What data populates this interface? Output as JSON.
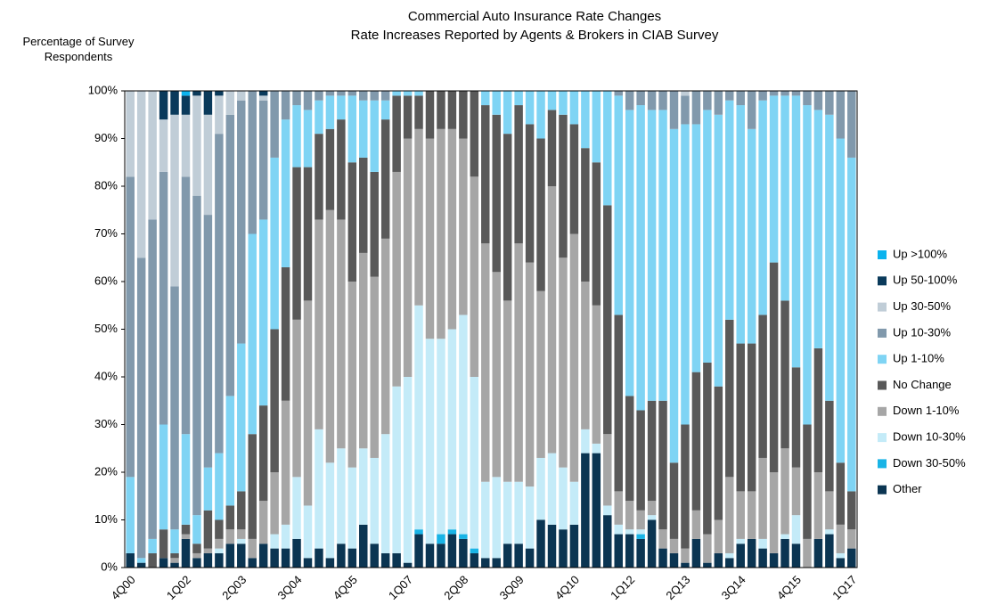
{
  "chart_data": {
    "type": "stacked_bar",
    "title": "Commercial Auto Insurance Rate Changes",
    "subtitle": "Rate Increases Reported by Agents & Brokers in CIAB Survey",
    "y_label": "Percentage of Survey Respondents",
    "categories": [
      "4Q00",
      null,
      null,
      null,
      null,
      "1Q02",
      null,
      null,
      null,
      null,
      "2Q03",
      null,
      null,
      null,
      null,
      "3Q04",
      null,
      null,
      null,
      null,
      "4Q05",
      null,
      null,
      null,
      null,
      "1Q07",
      null,
      null,
      null,
      null,
      "2Q08",
      null,
      null,
      null,
      null,
      "3Q09",
      null,
      null,
      null,
      null,
      "4Q10",
      null,
      null,
      null,
      null,
      "1Q12",
      null,
      null,
      null,
      null,
      "2Q13",
      null,
      null,
      null,
      null,
      "3Q14",
      null,
      null,
      null,
      null,
      "4Q15",
      null,
      null,
      null,
      null,
      "1Q17"
    ],
    "ylim": [
      0,
      100
    ],
    "yticks": [
      {
        "value": 0,
        "label": "0%"
      },
      {
        "value": 10,
        "label": "10%"
      },
      {
        "value": 20,
        "label": "20%"
      },
      {
        "value": 30,
        "label": "30%"
      },
      {
        "value": 40,
        "label": "40%"
      },
      {
        "value": 50,
        "label": "50%"
      },
      {
        "value": 60,
        "label": "60%"
      },
      {
        "value": 70,
        "label": "70%"
      },
      {
        "value": 80,
        "label": "80%"
      },
      {
        "value": 90,
        "label": "90%"
      },
      {
        "value": 100,
        "label": "100%"
      }
    ],
    "legend": "right",
    "series": [
      {
        "name": "Other",
        "color": "#0b3552",
        "values": [
          3,
          1,
          0,
          2,
          1,
          6,
          2,
          3,
          3,
          5,
          5,
          2,
          5,
          4,
          4,
          6,
          2,
          4,
          2,
          5,
          4,
          9,
          5,
          3,
          3,
          1,
          7,
          5,
          5,
          7,
          6,
          3,
          2,
          2,
          5,
          5,
          4,
          10,
          9,
          8,
          9,
          24,
          24,
          11,
          7,
          7,
          6,
          10,
          4,
          3,
          1,
          6,
          1,
          3,
          2,
          5,
          6,
          4,
          3,
          6,
          5,
          0,
          6,
          7,
          2,
          4
        ]
      },
      {
        "name": "Down 30-50%",
        "color": "#19b4e6",
        "values": [
          0,
          0,
          0,
          0,
          0,
          0,
          0,
          0,
          0,
          0,
          0,
          0,
          0,
          0,
          0,
          0,
          0,
          0,
          0,
          0,
          0,
          0,
          0,
          0,
          0,
          0,
          1,
          0,
          2,
          1,
          1,
          1,
          0,
          0,
          0,
          0,
          0,
          0,
          0,
          0,
          0,
          0,
          0,
          0,
          0,
          0,
          1,
          0,
          0,
          0,
          0,
          0,
          0,
          0,
          0,
          0,
          0,
          0,
          0,
          0,
          0,
          0,
          0,
          0,
          0,
          0
        ]
      },
      {
        "name": "Down 10-30%",
        "color": "#c4ebf8",
        "values": [
          0,
          0,
          0,
          0,
          0,
          0,
          0,
          0,
          1,
          0,
          1,
          0,
          0,
          3,
          5,
          13,
          11,
          25,
          20,
          20,
          17,
          16,
          18,
          25,
          35,
          39,
          47,
          43,
          41,
          42,
          46,
          36,
          16,
          17,
          13,
          13,
          13,
          13,
          15,
          13,
          9,
          5,
          2,
          2,
          2,
          1,
          1,
          1,
          0,
          0,
          0,
          0,
          0,
          0,
          1,
          1,
          0,
          2,
          0,
          1,
          6,
          0,
          0,
          1,
          1,
          0
        ]
      },
      {
        "name": "Down 1-10%",
        "color": "#a6a6a6",
        "values": [
          0,
          0,
          0,
          0,
          1,
          1,
          1,
          1,
          2,
          3,
          2,
          4,
          9,
          13,
          26,
          33,
          43,
          44,
          53,
          48,
          39,
          41,
          38,
          41,
          45,
          50,
          37,
          42,
          44,
          42,
          37,
          42,
          50,
          43,
          38,
          50,
          47,
          35,
          56,
          44,
          52,
          31,
          29,
          15,
          7,
          6,
          4,
          3,
          4,
          3,
          3,
          6,
          6,
          7,
          16,
          10,
          10,
          17,
          17,
          18,
          10,
          6,
          14,
          8,
          6,
          4
        ]
      },
      {
        "name": "No Change",
        "color": "#595959",
        "values": [
          0,
          0,
          3,
          6,
          1,
          2,
          2,
          8,
          4,
          5,
          8,
          22,
          20,
          30,
          28,
          32,
          28,
          18,
          17,
          21,
          25,
          20,
          22,
          25,
          16,
          9,
          7,
          10,
          8,
          8,
          10,
          18,
          29,
          33,
          35,
          29,
          29,
          32,
          16,
          30,
          23,
          28,
          30,
          48,
          37,
          22,
          21,
          21,
          27,
          16,
          26,
          29,
          36,
          28,
          33,
          31,
          31,
          30,
          44,
          31,
          21,
          24,
          26,
          19,
          13,
          8
        ]
      },
      {
        "name": "Up 1-10%",
        "color": "#7fd4f4",
        "values": [
          16,
          1,
          3,
          22,
          5,
          19,
          6,
          9,
          14,
          23,
          31,
          42,
          39,
          36,
          31,
          13,
          12,
          7,
          7,
          5,
          14,
          12,
          15,
          4,
          1,
          1,
          1,
          0,
          0,
          0,
          0,
          0,
          3,
          5,
          9,
          3,
          7,
          10,
          4,
          5,
          7,
          12,
          15,
          24,
          46,
          60,
          64,
          61,
          61,
          70,
          63,
          52,
          53,
          57,
          46,
          50,
          45,
          45,
          35,
          43,
          57,
          67,
          50,
          60,
          68,
          70
        ]
      },
      {
        "name": "Up 10-30%",
        "color": "#8199ac",
        "values": [
          63,
          63,
          67,
          53,
          51,
          54,
          67,
          53,
          67,
          59,
          51,
          30,
          25,
          14,
          6,
          3,
          4,
          2,
          1,
          1,
          1,
          2,
          2,
          2,
          0,
          0,
          0,
          0,
          0,
          0,
          0,
          0,
          0,
          0,
          0,
          0,
          0,
          0,
          0,
          0,
          0,
          0,
          0,
          0,
          1,
          4,
          3,
          4,
          4,
          8,
          6,
          7,
          4,
          5,
          2,
          3,
          8,
          2,
          1,
          1,
          1,
          3,
          4,
          5,
          10,
          14
        ]
      },
      {
        "name": "Up 30-50%",
        "color": "#c0cdd7",
        "values": [
          18,
          35,
          27,
          11,
          36,
          13,
          21,
          21,
          8,
          5,
          2,
          0,
          1,
          0,
          0,
          0,
          0,
          0,
          0,
          0,
          0,
          0,
          0,
          0,
          0,
          0,
          0,
          0,
          0,
          0,
          0,
          0,
          0,
          0,
          0,
          0,
          0,
          0,
          0,
          0,
          0,
          0,
          0,
          0,
          0,
          0,
          0,
          0,
          0,
          0,
          1,
          0,
          0,
          0,
          0,
          0,
          0,
          0,
          0,
          0,
          0,
          0,
          0,
          0,
          0,
          0
        ]
      },
      {
        "name": "Up 50-100%",
        "color": "#0a3a5b",
        "values": [
          0,
          0,
          0,
          6,
          5,
          4,
          1,
          5,
          1,
          0,
          0,
          0,
          1,
          0,
          0,
          0,
          0,
          0,
          0,
          0,
          0,
          0,
          0,
          0,
          0,
          0,
          0,
          0,
          0,
          0,
          0,
          0,
          0,
          0,
          0,
          0,
          0,
          0,
          0,
          0,
          0,
          0,
          0,
          0,
          0,
          0,
          0,
          0,
          0,
          0,
          0,
          0,
          0,
          0,
          0,
          0,
          0,
          0,
          0,
          0,
          0,
          0,
          0,
          0,
          0,
          0
        ]
      },
      {
        "name": "Up >100%",
        "color": "#0bb3ee",
        "values": [
          0,
          0,
          0,
          0,
          0,
          1,
          0,
          0,
          0,
          0,
          0,
          0,
          0,
          0,
          0,
          0,
          0,
          0,
          0,
          0,
          0,
          0,
          0,
          0,
          0,
          0,
          0,
          0,
          0,
          0,
          0,
          0,
          0,
          0,
          0,
          0,
          0,
          0,
          0,
          0,
          0,
          0,
          0,
          0,
          0,
          0,
          0,
          0,
          0,
          0,
          0,
          0,
          0,
          0,
          0,
          0,
          0,
          0,
          0,
          0,
          0,
          0,
          0,
          0,
          0,
          0
        ]
      }
    ]
  }
}
